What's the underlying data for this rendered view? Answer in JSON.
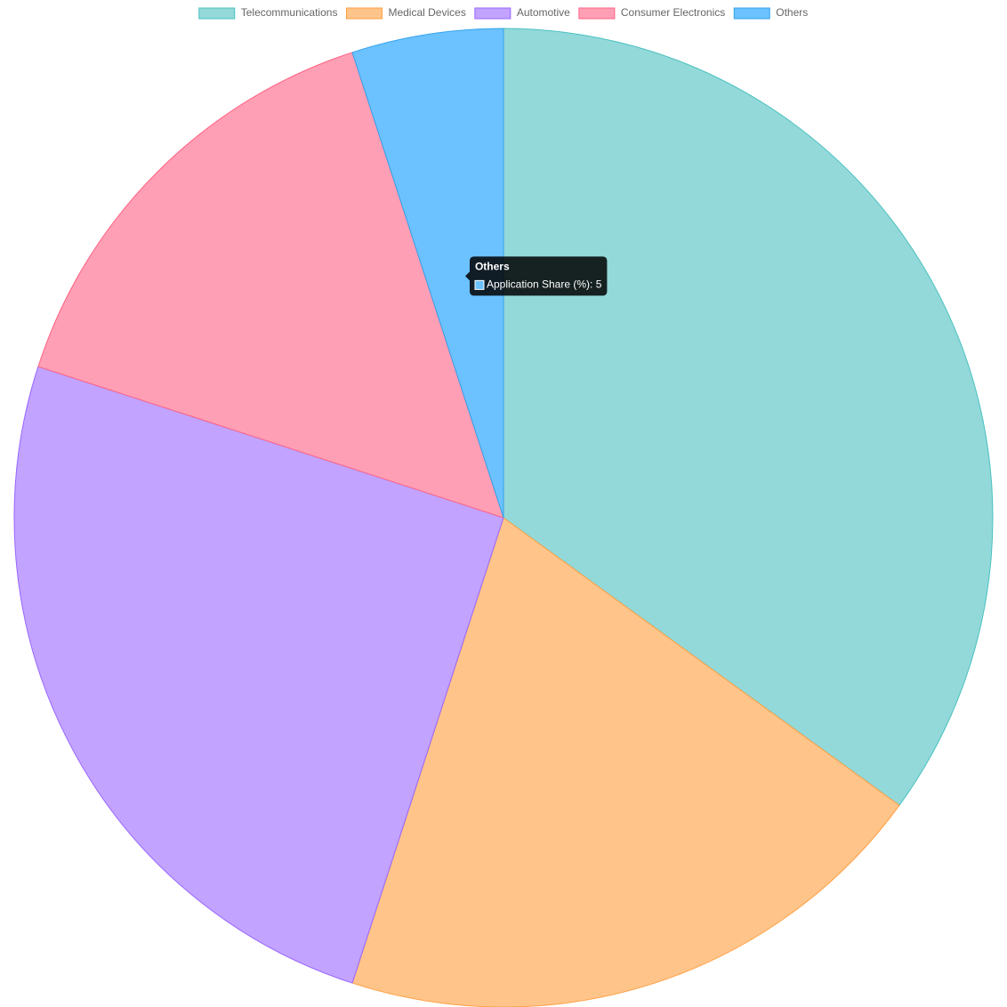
{
  "chart_data": {
    "type": "pie",
    "series_name": "Application Share (%)",
    "categories": [
      "Telecommunications",
      "Medical Devices",
      "Automotive",
      "Consumer Electronics",
      "Others"
    ],
    "values": [
      35,
      20,
      25,
      15,
      5
    ],
    "colors": [
      "#93d9d9",
      "#ffc48a",
      "#c2a3ff",
      "#ff9fb5",
      "#6bc2ff"
    ],
    "border_colors": [
      "#4bc0c0",
      "#ff9f40",
      "#9966ff",
      "#ff6384",
      "#36a2eb"
    ],
    "legend": "top",
    "tooltip_index": 4
  }
}
